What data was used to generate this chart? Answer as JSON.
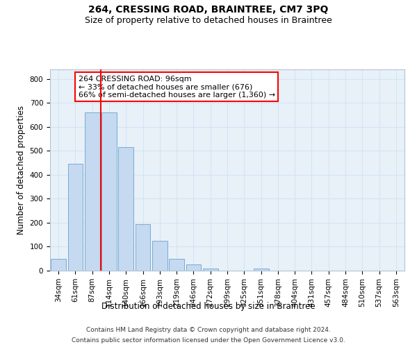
{
  "title": "264, CRESSING ROAD, BRAINTREE, CM7 3PQ",
  "subtitle": "Size of property relative to detached houses in Braintree",
  "xlabel": "Distribution of detached houses by size in Braintree",
  "ylabel": "Number of detached properties",
  "bar_labels": [
    "34sqm",
    "61sqm",
    "87sqm",
    "114sqm",
    "140sqm",
    "166sqm",
    "193sqm",
    "219sqm",
    "246sqm",
    "272sqm",
    "299sqm",
    "325sqm",
    "351sqm",
    "378sqm",
    "404sqm",
    "431sqm",
    "457sqm",
    "484sqm",
    "510sqm",
    "537sqm",
    "563sqm"
  ],
  "bar_values": [
    50,
    445,
    660,
    660,
    515,
    193,
    125,
    50,
    25,
    10,
    0,
    0,
    8,
    0,
    0,
    0,
    0,
    0,
    0,
    0,
    0
  ],
  "bar_color": "#c5d9f0",
  "bar_edge_color": "#6aa3cc",
  "grid_color": "#d0e4f5",
  "background_color": "#e8f0f8",
  "vline_x": 2.5,
  "vline_color": "red",
  "annotation_text": "264 CRESSING ROAD: 96sqm\n← 33% of detached houses are smaller (676)\n66% of semi-detached houses are larger (1,360) →",
  "annotation_box_color": "white",
  "annotation_box_edge_color": "red",
  "ylim": [
    0,
    840
  ],
  "yticks": [
    0,
    100,
    200,
    300,
    400,
    500,
    600,
    700,
    800
  ],
  "footer_line1": "Contains HM Land Registry data © Crown copyright and database right 2024.",
  "footer_line2": "Contains public sector information licensed under the Open Government Licence v3.0.",
  "title_fontsize": 10,
  "subtitle_fontsize": 9,
  "axis_label_fontsize": 8.5,
  "tick_fontsize": 7.5,
  "annotation_fontsize": 8,
  "footer_fontsize": 6.5
}
